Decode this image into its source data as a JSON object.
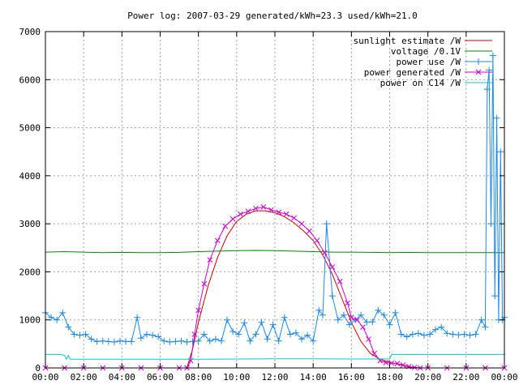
{
  "chart_data": {
    "type": "line",
    "title": "Power log: 2007-03-29 generated/kWh=23.3 used/kWh=21.0",
    "xlabel": "",
    "ylabel": "",
    "xlim": [
      0,
      24
    ],
    "ylim": [
      0,
      7000
    ],
    "grid": true,
    "legend_position": "top-right",
    "x_tick_labels": [
      "00:00",
      "02:00",
      "04:00",
      "06:00",
      "08:00",
      "10:00",
      "12:00",
      "14:00",
      "16:00",
      "18:00",
      "20:00",
      "22:00",
      "00:00"
    ],
    "y_tick_labels": [
      "0",
      "1000",
      "2000",
      "3000",
      "4000",
      "5000",
      "6000",
      "7000"
    ],
    "y_tick_values": [
      0,
      1000,
      2000,
      3000,
      4000,
      5000,
      6000,
      7000
    ],
    "series": [
      {
        "name": "sunlight estimate /W",
        "color": "#cc0000",
        "marker": "none",
        "x": [
          0,
          7.4,
          7.7,
          8.0,
          8.5,
          9.0,
          9.5,
          10.0,
          10.5,
          11.0,
          11.5,
          12.0,
          12.5,
          13.0,
          13.5,
          14.0,
          14.5,
          15.0,
          15.5,
          16.0,
          16.5,
          17.0,
          17.5,
          18.0,
          18.5,
          19.0,
          19.5,
          24.0
        ],
        "y": [
          0,
          0,
          400,
          950,
          1700,
          2300,
          2750,
          3050,
          3200,
          3270,
          3270,
          3230,
          3150,
          3020,
          2850,
          2650,
          2350,
          1950,
          1450,
          950,
          550,
          300,
          180,
          120,
          70,
          20,
          0,
          0
        ]
      },
      {
        "name": "voltage /0.1V",
        "color": "#008800",
        "marker": "none",
        "x": [
          0,
          1,
          2,
          3,
          4,
          5,
          6,
          7,
          8,
          9,
          10,
          11,
          12,
          13,
          14,
          15,
          16,
          17,
          18,
          19,
          20,
          21,
          22,
          23,
          24
        ],
        "y": [
          2410,
          2420,
          2410,
          2400,
          2405,
          2400,
          2400,
          2405,
          2420,
          2430,
          2440,
          2445,
          2440,
          2430,
          2420,
          2410,
          2410,
          2405,
          2400,
          2405,
          2400,
          2400,
          2400,
          2400,
          2400
        ]
      },
      {
        "name": "power use /W",
        "color": "#1e88e5",
        "marker": "+",
        "x": [
          0,
          0.3,
          0.6,
          0.9,
          1.2,
          1.5,
          1.8,
          2.1,
          2.4,
          2.7,
          3.0,
          3.3,
          3.6,
          3.9,
          4.2,
          4.5,
          4.8,
          5.0,
          5.3,
          5.6,
          5.9,
          6.2,
          6.5,
          6.8,
          7.1,
          7.4,
          7.7,
          8.0,
          8.3,
          8.6,
          8.9,
          9.2,
          9.5,
          9.8,
          10.1,
          10.4,
          10.7,
          11.0,
          11.3,
          11.6,
          11.9,
          12.2,
          12.5,
          12.8,
          13.1,
          13.4,
          13.7,
          14.0,
          14.3,
          14.5,
          14.7,
          15.0,
          15.3,
          15.6,
          15.9,
          16.2,
          16.5,
          16.8,
          17.1,
          17.4,
          17.7,
          18.0,
          18.3,
          18.6,
          18.9,
          19.2,
          19.5,
          19.8,
          20.1,
          20.4,
          20.7,
          21.0,
          21.3,
          21.6,
          21.9,
          22.2,
          22.5,
          22.8,
          23.0,
          23.1,
          23.2,
          23.3,
          23.4,
          23.5,
          23.6,
          23.7,
          23.8,
          23.9,
          24.0
        ],
        "y": [
          1150,
          1050,
          1000,
          1150,
          850,
          700,
          680,
          700,
          600,
          550,
          560,
          550,
          540,
          560,
          550,
          550,
          1050,
          620,
          700,
          680,
          650,
          560,
          540,
          550,
          560,
          540,
          550,
          560,
          700,
          560,
          600,
          560,
          1000,
          760,
          700,
          940,
          560,
          700,
          950,
          600,
          900,
          560,
          1050,
          700,
          730,
          600,
          680,
          560,
          1200,
          1100,
          3000,
          1500,
          1000,
          1100,
          900,
          1000,
          1100,
          950,
          960,
          1200,
          1100,
          900,
          1150,
          700,
          650,
          700,
          720,
          680,
          700,
          800,
          850,
          720,
          700,
          690,
          700,
          680,
          700,
          1000,
          850,
          5800,
          6200,
          3000,
          6500,
          1500,
          5200,
          1000,
          4500,
          1000,
          1050
        ]
      },
      {
        "name": "power generated /W",
        "color": "#cc00cc",
        "marker": "x",
        "x": [
          0,
          1,
          2,
          3,
          4,
          5,
          6,
          7,
          7.4,
          7.6,
          7.8,
          8.0,
          8.3,
          8.6,
          9.0,
          9.4,
          9.8,
          10.2,
          10.6,
          11.0,
          11.4,
          11.8,
          12.2,
          12.6,
          13.0,
          13.4,
          13.8,
          14.2,
          14.6,
          15.0,
          15.4,
          15.8,
          16.0,
          16.3,
          16.6,
          16.9,
          17.2,
          17.5,
          17.8,
          18.1,
          18.4,
          18.7,
          19.0,
          19.3,
          19.6,
          20.0,
          21.0,
          22.0,
          23.0,
          24.0
        ],
        "y": [
          0,
          0,
          0,
          0,
          0,
          0,
          0,
          0,
          0,
          150,
          700,
          1200,
          1750,
          2250,
          2650,
          2950,
          3100,
          3200,
          3260,
          3320,
          3350,
          3290,
          3240,
          3200,
          3120,
          3000,
          2850,
          2650,
          2400,
          2100,
          1800,
          1350,
          1050,
          1000,
          850,
          600,
          300,
          150,
          110,
          100,
          90,
          60,
          30,
          10,
          0,
          0,
          0,
          0,
          0,
          0
        ]
      },
      {
        "name": "power on C14 /W",
        "color": "#00cccc",
        "marker": "none",
        "x": [
          0,
          0.8,
          1.0,
          1.1,
          1.2,
          1.3,
          1.5,
          2.0,
          4.0,
          6.0,
          8.0,
          10.0,
          12.0,
          14.0,
          16.0,
          18.0,
          18.1,
          20.0,
          22.0,
          23.0,
          24.0
        ],
        "y": [
          280,
          280,
          260,
          180,
          260,
          180,
          180,
          180,
          180,
          180,
          180,
          185,
          190,
          190,
          185,
          185,
          280,
          280,
          280,
          280,
          280
        ]
      }
    ]
  }
}
